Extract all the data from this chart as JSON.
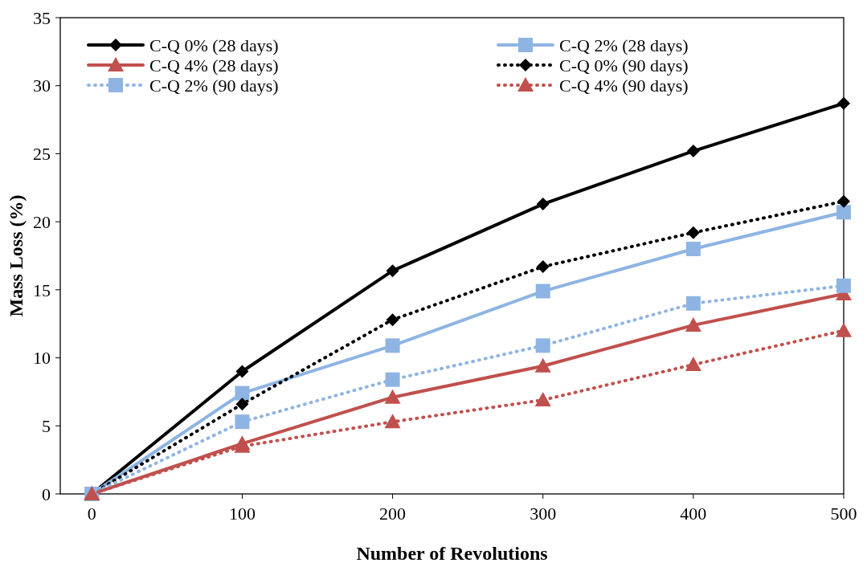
{
  "chart_data": {
    "type": "line",
    "xlabel": "Number of Revolutions",
    "ylabel": "Mass Loss (%)",
    "x": [
      0,
      100,
      200,
      300,
      400,
      500
    ],
    "xlim": [
      -21,
      500
    ],
    "xticks": [
      0,
      100,
      200,
      300,
      400,
      500
    ],
    "ylim": [
      0,
      35
    ],
    "yticks": [
      0,
      5,
      10,
      15,
      20,
      25,
      30,
      35
    ],
    "grid": false,
    "legend": "top left",
    "series": [
      {
        "name": "C-Q 0% (28 days)",
        "color": "#000000",
        "marker": "diamond",
        "line_style": "solid",
        "values": [
          0,
          9.0,
          16.4,
          21.3,
          25.2,
          28.7
        ]
      },
      {
        "name": "C-Q 2% (28 days)",
        "color": "#8eb4e3",
        "marker": "square",
        "line_style": "solid",
        "values": [
          0,
          7.4,
          10.9,
          14.9,
          18.0,
          20.7
        ]
      },
      {
        "name": "C-Q 4% (28 days)",
        "color": "#c0504d",
        "marker": "triangle",
        "line_style": "solid",
        "values": [
          0,
          3.7,
          7.1,
          9.4,
          12.4,
          14.7
        ]
      },
      {
        "name": "C-Q 0% (90 days)",
        "color": "#000000",
        "marker": "diamond",
        "line_style": "dotted",
        "values": [
          0,
          6.6,
          12.8,
          16.7,
          19.2,
          21.5
        ]
      },
      {
        "name": "C-Q 2% (90 days)",
        "color": "#8eb4e3",
        "marker": "square",
        "line_style": "dotted",
        "values": [
          0,
          5.3,
          8.4,
          10.9,
          14.0,
          15.3
        ]
      },
      {
        "name": "C-Q 4% (90 days)",
        "color": "#c0504d",
        "marker": "triangle",
        "line_style": "dotted",
        "values": [
          0,
          3.5,
          5.3,
          6.9,
          9.5,
          12.0
        ]
      }
    ]
  }
}
